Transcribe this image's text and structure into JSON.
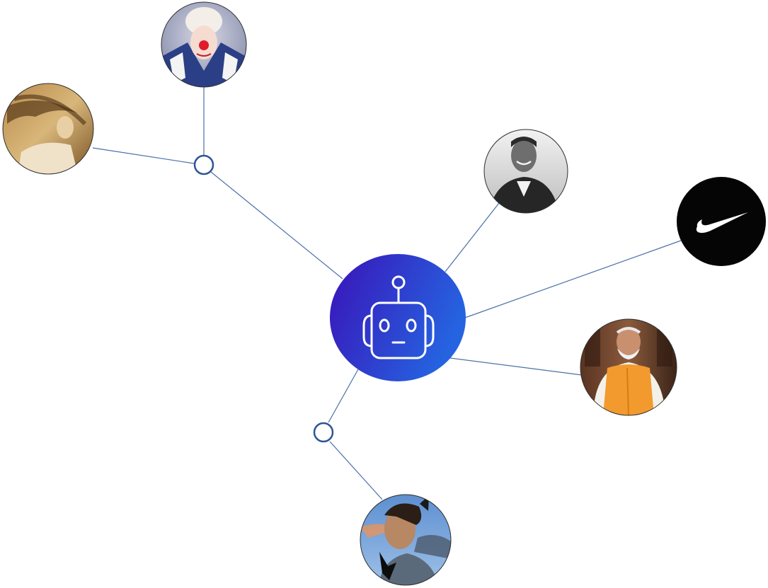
{
  "diagram": {
    "hub": {
      "name": "central-ai-bot",
      "icon": "robot-icon",
      "gradient": [
        "#3a12b8",
        "#2563e0"
      ],
      "line_color": "#ffffff"
    },
    "edge_color": "#4a6fa8",
    "junction_color": "#2f5597",
    "nodes": [
      {
        "name": "avatar-clown-performer",
        "icon": "person-photo-icon"
      },
      {
        "name": "avatar-windblown-singer",
        "icon": "person-photo-icon"
      },
      {
        "name": "avatar-smiling-man-bw",
        "icon": "person-photo-icon"
      },
      {
        "name": "avatar-swoosh-brand",
        "icon": "swoosh-logo-icon"
      },
      {
        "name": "avatar-man-orange-vest",
        "icon": "person-photo-icon"
      },
      {
        "name": "avatar-athlete-profile",
        "icon": "person-photo-icon"
      }
    ],
    "junctions": [
      {
        "name": "junction-upper-left"
      },
      {
        "name": "junction-lower"
      }
    ]
  }
}
